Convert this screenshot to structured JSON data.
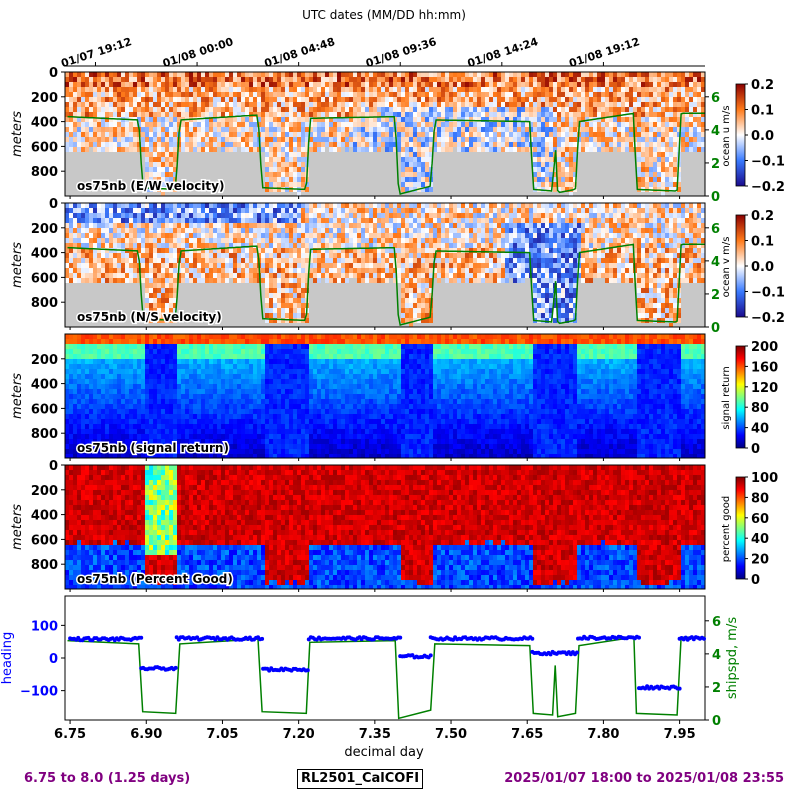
{
  "header": {
    "top_axis_title": "UTC dates (MM/DD hh:mm)",
    "top_ticks": [
      {
        "day": 6.8,
        "label": "01/07 19:12"
      },
      {
        "day": 7.0,
        "label": "01/08 00:00"
      },
      {
        "day": 7.2,
        "label": "01/08 04:48"
      },
      {
        "day": 7.4,
        "label": "01/08 09:36"
      },
      {
        "day": 7.6,
        "label": "01/08 14:24"
      },
      {
        "day": 7.8,
        "label": "01/08 19:12"
      }
    ]
  },
  "footer": {
    "left": "6.75 to 8.0 (1.25 days)",
    "center": "RL2501_CalCOFI",
    "right": "2025/01/07 18:00 to 2025/01/08 23:55"
  },
  "colors": {
    "heading": "#0000ff",
    "shipspd": "#008000",
    "nodata": "#c8c8c8",
    "footer_purple": "#800080"
  },
  "chart_data": [
    {
      "type": "heatmap",
      "panel": "u",
      "label": "os75nb (E/W velocity)",
      "ylabel": "meters",
      "colorbar_label": "ocean u m/s",
      "colorbar_ticks": [
        "0.2",
        "0.1",
        "0.0",
        "−0.1",
        "−0.2"
      ],
      "colormap": "seismic-like",
      "clim": [
        -0.2,
        0.2
      ],
      "ylim": [
        0,
        1000
      ],
      "yticks": [
        "0",
        "200",
        "400",
        "600",
        "800"
      ],
      "right_axis_ticks": [
        "6",
        "4",
        "2",
        "0"
      ],
      "right_axis_range": [
        0,
        7.5
      ]
    },
    {
      "type": "heatmap",
      "panel": "v",
      "label": "os75nb (N/S velocity)",
      "ylabel": "meters",
      "colorbar_label": "ocean v m/s",
      "colorbar_ticks": [
        "0.2",
        "0.1",
        "0.0",
        "−0.1",
        "−0.2"
      ],
      "colormap": "seismic-like",
      "clim": [
        -0.2,
        0.2
      ],
      "ylim": [
        0,
        1000
      ],
      "yticks": [
        "0",
        "200",
        "400",
        "600",
        "800"
      ],
      "right_axis_ticks": [
        "6",
        "4",
        "2",
        "0"
      ],
      "right_axis_range": [
        0,
        7.5
      ]
    },
    {
      "type": "heatmap",
      "panel": "amp",
      "label": "os75nb (signal return)",
      "ylabel": "meters",
      "colorbar_label": "signal return",
      "colorbar_ticks": [
        "200",
        "160",
        "120",
        "80",
        "40",
        "0"
      ],
      "colormap": "jet",
      "clim": [
        0,
        200
      ],
      "ylim": [
        0,
        1000
      ],
      "yticks": [
        "200",
        "400",
        "600",
        "800"
      ]
    },
    {
      "type": "heatmap",
      "panel": "pg",
      "label": "os75nb (Percent Good)",
      "ylabel": "meters",
      "colorbar_label": "percent good",
      "colorbar_ticks": [
        "100",
        "80",
        "60",
        "40",
        "20",
        "0"
      ],
      "colormap": "jet",
      "clim": [
        0,
        100
      ],
      "ylim": [
        0,
        1000
      ],
      "yticks": [
        "0",
        "200",
        "400",
        "600",
        "800"
      ]
    },
    {
      "type": "scatter",
      "panel": "nav",
      "xlabel": "decimal day",
      "xlim": [
        6.74,
        8.0
      ],
      "xticks": [
        "6.75",
        "6.90",
        "7.05",
        "7.20",
        "7.35",
        "7.50",
        "7.65",
        "7.80",
        "7.95"
      ],
      "ylabel_left": "heading",
      "ylim_left": [
        -190,
        190
      ],
      "yticks_left": [
        "100",
        "0",
        "−100"
      ],
      "ylabel_right": "shipspd, m/s",
      "ylim_right": [
        0,
        7.5
      ],
      "yticks_right": [
        "6",
        "4",
        "2",
        "0"
      ],
      "heading_segments": [
        {
          "x0": 6.75,
          "x1": 6.89,
          "y": 58
        },
        {
          "x0": 6.89,
          "x1": 6.96,
          "y": -32
        },
        {
          "x0": 6.96,
          "x1": 7.13,
          "y": 60
        },
        {
          "x0": 7.13,
          "x1": 7.22,
          "y": -35
        },
        {
          "x0": 7.22,
          "x1": 7.4,
          "y": 60
        },
        {
          "x0": 7.4,
          "x1": 7.46,
          "y": 5
        },
        {
          "x0": 7.46,
          "x1": 7.66,
          "y": 60
        },
        {
          "x0": 7.66,
          "x1": 7.75,
          "y": 15
        },
        {
          "x0": 7.75,
          "x1": 7.87,
          "y": 62
        },
        {
          "x0": 7.87,
          "x1": 7.95,
          "y": -90
        },
        {
          "x0": 7.95,
          "x1": 8.0,
          "y": 60
        }
      ],
      "shipspd_points": [
        [
          6.745,
          4.8
        ],
        [
          6.885,
          4.6
        ],
        [
          6.893,
          0.5
        ],
        [
          6.958,
          0.4
        ],
        [
          6.966,
          4.6
        ],
        [
          7.12,
          4.9
        ],
        [
          7.128,
          0.5
        ],
        [
          7.215,
          0.4
        ],
        [
          7.222,
          4.7
        ],
        [
          7.39,
          4.8
        ],
        [
          7.397,
          0.1
        ],
        [
          7.46,
          0.6
        ],
        [
          7.468,
          4.6
        ],
        [
          7.655,
          4.5
        ],
        [
          7.662,
          0.4
        ],
        [
          7.7,
          0.3
        ],
        [
          7.705,
          3.3
        ],
        [
          7.71,
          0.2
        ],
        [
          7.745,
          0.4
        ],
        [
          7.752,
          4.5
        ],
        [
          7.86,
          5.0
        ],
        [
          7.865,
          0.4
        ],
        [
          7.945,
          0.3
        ],
        [
          7.953,
          5.0
        ],
        [
          8.0,
          5.0
        ]
      ]
    }
  ]
}
